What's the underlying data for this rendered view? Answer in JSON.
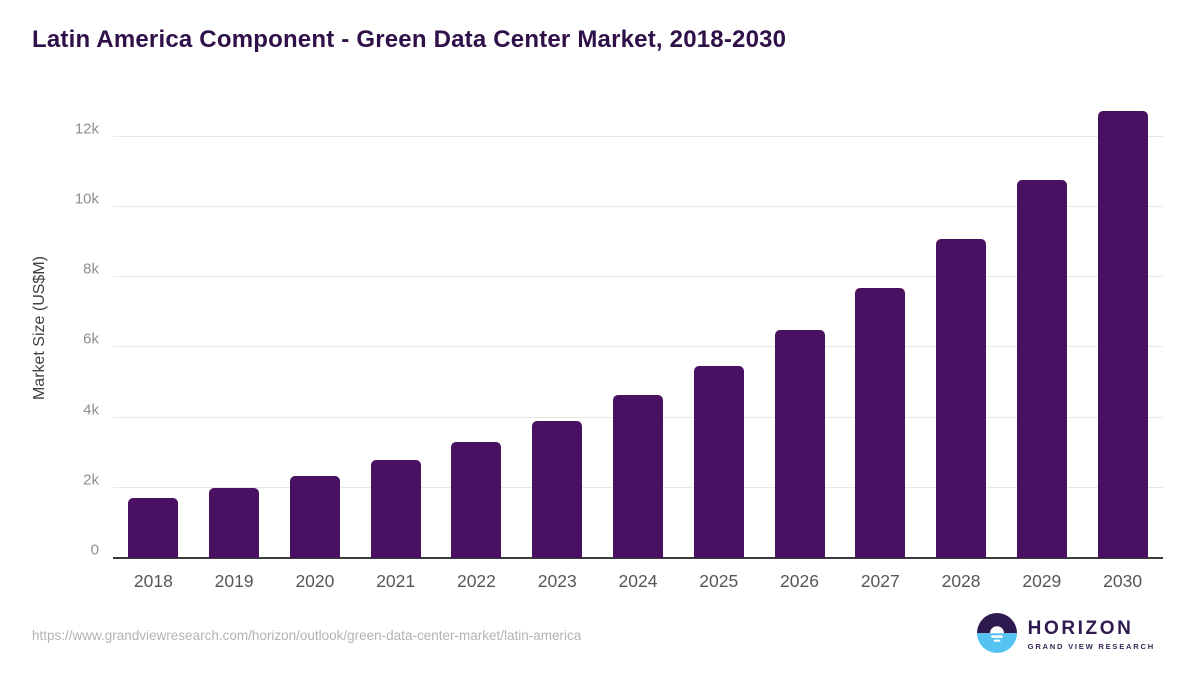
{
  "page": {
    "title": "Latin America Component - Green Data Center Market, 2018-2030"
  },
  "chart_data": {
    "type": "bar",
    "title": "Latin America Component - Green Data Center Market, 2018-2030",
    "categories": [
      "2018",
      "2019",
      "2020",
      "2021",
      "2022",
      "2023",
      "2024",
      "2025",
      "2026",
      "2027",
      "2028",
      "2029",
      "2030"
    ],
    "values": [
      1710,
      1980,
      2340,
      2780,
      3300,
      3910,
      4650,
      5480,
      6480,
      7690,
      9080,
      10760,
      12720
    ],
    "xlabel": "",
    "ylabel": "Market Size (US$M)",
    "ylim": [
      0,
      13100
    ],
    "yticks": [
      {
        "value": 0,
        "label": "0"
      },
      {
        "value": 2000,
        "label": "2k"
      },
      {
        "value": 4000,
        "label": "4k"
      },
      {
        "value": 6000,
        "label": "6k"
      },
      {
        "value": 8000,
        "label": "8k"
      },
      {
        "value": 10000,
        "label": "10k"
      },
      {
        "value": 12000,
        "label": "12k"
      }
    ],
    "grid": true,
    "legend": false
  },
  "footer": {
    "source_url": "https://www.grandviewresearch.com/horizon/outlook/green-data-center-market/latin-america",
    "logo_title": "HORIZON",
    "logo_subtitle": "GRAND VIEW RESEARCH"
  },
  "colors": {
    "title": "#2f1048",
    "bar": "#4a1061",
    "gridline": "#e9e9e9",
    "axis_line": "#3b3b3b",
    "y_tick": "#8f8f8f",
    "x_tick": "#565656",
    "axis_title": "#3f3f3f",
    "url_text": "#b3b3b3",
    "logo_purple": "#2e1a4e",
    "logo_blue": "#55c3f2"
  }
}
